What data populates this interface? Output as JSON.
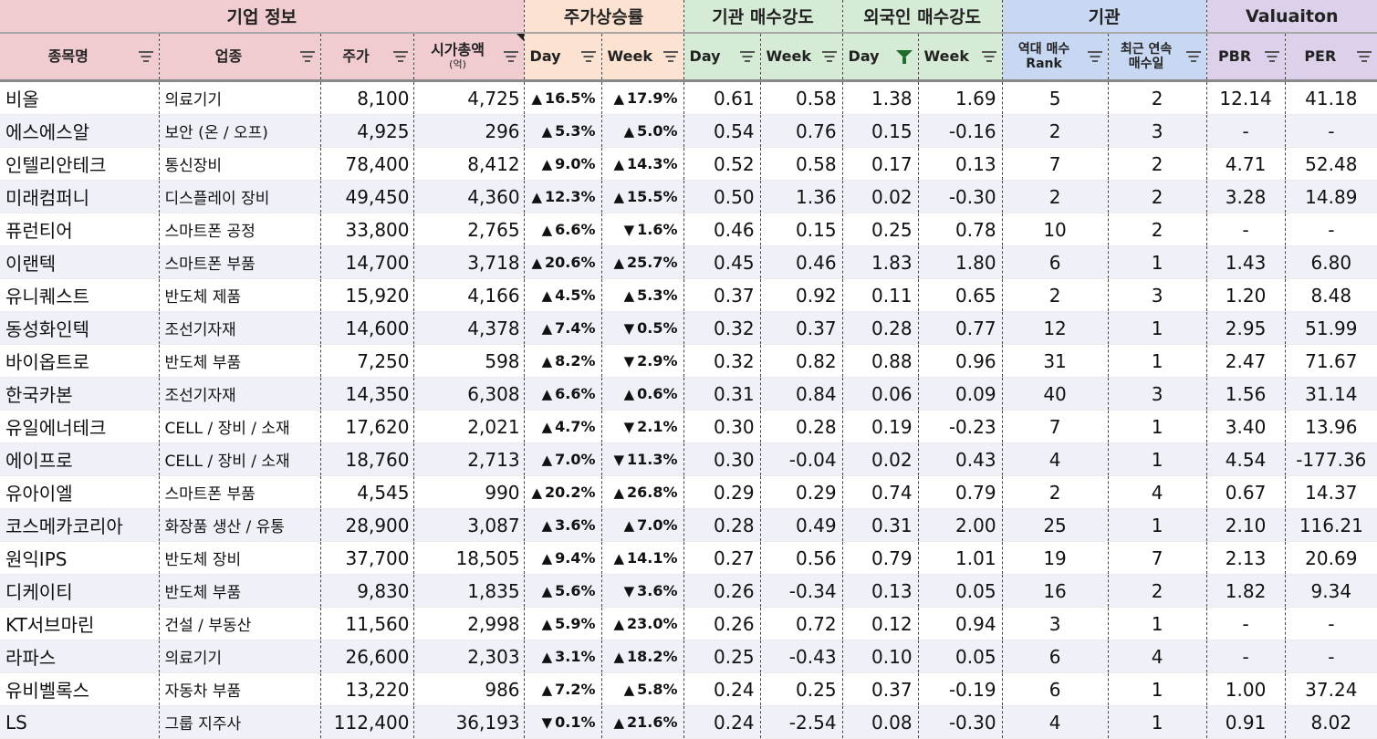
{
  "groups": {
    "company": "기업 정보",
    "price": "주가상승률",
    "inst": "기관 매수강도",
    "foreign": "외국인 매수강도",
    "inst2": "기관",
    "valuation": "Valuaiton"
  },
  "headers": {
    "name": "종목명",
    "industry": "업종",
    "price": "주가",
    "mcap": "시가총액",
    "mcap_unit": "(억)",
    "day": "Day",
    "week": "Week",
    "rank_line1": "역대 매수",
    "rank_line2": "Rank",
    "consec_line1": "최근 연속",
    "consec_line2": "매수일",
    "pbr": "PBR",
    "per": "PER"
  },
  "rows": [
    {
      "name": "비올",
      "industry": "의료기기",
      "price": "8,100",
      "mcap": "4,725",
      "pd": "16.5%",
      "pd_dir": "up",
      "pw": "17.9%",
      "pw_dir": "up",
      "id": "0.61",
      "iw": "0.58",
      "fd": "1.38",
      "fw": "1.69",
      "rank": "5",
      "consec": "2",
      "pbr": "12.14",
      "per": "41.18"
    },
    {
      "name": "에스에스알",
      "industry": "보안 (온 / 오프)",
      "price": "4,925",
      "mcap": "296",
      "pd": "5.3%",
      "pd_dir": "up",
      "pw": "5.0%",
      "pw_dir": "up",
      "id": "0.54",
      "iw": "0.76",
      "fd": "0.15",
      "fw": "-0.16",
      "rank": "2",
      "consec": "3",
      "pbr": "-",
      "per": "-"
    },
    {
      "name": "인텔리안테크",
      "industry": "통신장비",
      "price": "78,400",
      "mcap": "8,412",
      "pd": "9.0%",
      "pd_dir": "up",
      "pw": "14.3%",
      "pw_dir": "up",
      "id": "0.52",
      "iw": "0.58",
      "fd": "0.17",
      "fw": "0.13",
      "rank": "7",
      "consec": "2",
      "pbr": "4.71",
      "per": "52.48"
    },
    {
      "name": "미래컴퍼니",
      "industry": "디스플레이 장비",
      "price": "49,450",
      "mcap": "4,360",
      "pd": "12.3%",
      "pd_dir": "up",
      "pw": "15.5%",
      "pw_dir": "up",
      "id": "0.50",
      "iw": "1.36",
      "fd": "0.02",
      "fw": "-0.30",
      "rank": "2",
      "consec": "2",
      "pbr": "3.28",
      "per": "14.89"
    },
    {
      "name": "퓨런티어",
      "industry": "스마트폰 공정",
      "price": "33,800",
      "mcap": "2,765",
      "pd": "6.6%",
      "pd_dir": "up",
      "pw": "1.6%",
      "pw_dir": "dn",
      "id": "0.46",
      "iw": "0.15",
      "fd": "0.25",
      "fw": "0.78",
      "rank": "10",
      "consec": "2",
      "pbr": "-",
      "per": "-"
    },
    {
      "name": "이랜텍",
      "industry": "스마트폰 부품",
      "price": "14,700",
      "mcap": "3,718",
      "pd": "20.6%",
      "pd_dir": "up",
      "pw": "25.7%",
      "pw_dir": "up",
      "id": "0.45",
      "iw": "0.46",
      "fd": "1.83",
      "fw": "1.80",
      "rank": "6",
      "consec": "1",
      "pbr": "1.43",
      "per": "6.80"
    },
    {
      "name": "유니퀘스트",
      "industry": "반도체 제품",
      "price": "15,920",
      "mcap": "4,166",
      "pd": "4.5%",
      "pd_dir": "up",
      "pw": "5.3%",
      "pw_dir": "up",
      "id": "0.37",
      "iw": "0.92",
      "fd": "0.11",
      "fw": "0.65",
      "rank": "2",
      "consec": "3",
      "pbr": "1.20",
      "per": "8.48"
    },
    {
      "name": "동성화인텍",
      "industry": "조선기자재",
      "price": "14,600",
      "mcap": "4,378",
      "pd": "7.4%",
      "pd_dir": "up",
      "pw": "0.5%",
      "pw_dir": "dn",
      "id": "0.32",
      "iw": "0.37",
      "fd": "0.28",
      "fw": "0.77",
      "rank": "12",
      "consec": "1",
      "pbr": "2.95",
      "per": "51.99"
    },
    {
      "name": "바이옵트로",
      "industry": "반도체 부품",
      "price": "7,250",
      "mcap": "598",
      "pd": "8.2%",
      "pd_dir": "up",
      "pw": "2.9%",
      "pw_dir": "dn",
      "id": "0.32",
      "iw": "0.82",
      "fd": "0.88",
      "fw": "0.96",
      "rank": "31",
      "consec": "1",
      "pbr": "2.47",
      "per": "71.67"
    },
    {
      "name": "한국카본",
      "industry": "조선기자재",
      "price": "14,350",
      "mcap": "6,308",
      "pd": "6.6%",
      "pd_dir": "up",
      "pw": "0.6%",
      "pw_dir": "up",
      "id": "0.31",
      "iw": "0.84",
      "fd": "0.06",
      "fw": "0.09",
      "rank": "40",
      "consec": "3",
      "pbr": "1.56",
      "per": "31.14"
    },
    {
      "name": "유일에너테크",
      "industry": "CELL / 장비 / 소재",
      "price": "17,620",
      "mcap": "2,021",
      "pd": "4.7%",
      "pd_dir": "up",
      "pw": "2.1%",
      "pw_dir": "dn",
      "id": "0.30",
      "iw": "0.28",
      "fd": "0.19",
      "fw": "-0.23",
      "rank": "7",
      "consec": "1",
      "pbr": "3.40",
      "per": "13.96"
    },
    {
      "name": "에이프로",
      "industry": "CELL / 장비 / 소재",
      "price": "18,760",
      "mcap": "2,713",
      "pd": "7.0%",
      "pd_dir": "up",
      "pw": "11.3%",
      "pw_dir": "dn",
      "id": "0.30",
      "iw": "-0.04",
      "fd": "0.02",
      "fw": "0.43",
      "rank": "4",
      "consec": "1",
      "pbr": "4.54",
      "per": "-177.36"
    },
    {
      "name": "유아이엘",
      "industry": "스마트폰 부품",
      "price": "4,545",
      "mcap": "990",
      "pd": "20.2%",
      "pd_dir": "up",
      "pw": "26.8%",
      "pw_dir": "up",
      "id": "0.29",
      "iw": "0.29",
      "fd": "0.74",
      "fw": "0.79",
      "rank": "2",
      "consec": "4",
      "pbr": "0.67",
      "per": "14.37"
    },
    {
      "name": "코스메카코리아",
      "industry": "화장품 생산 / 유통",
      "price": "28,900",
      "mcap": "3,087",
      "pd": "3.6%",
      "pd_dir": "up",
      "pw": "7.0%",
      "pw_dir": "up",
      "id": "0.28",
      "iw": "0.49",
      "fd": "0.31",
      "fw": "2.00",
      "rank": "25",
      "consec": "1",
      "pbr": "2.10",
      "per": "116.21"
    },
    {
      "name": "원익IPS",
      "industry": "반도체 장비",
      "price": "37,700",
      "mcap": "18,505",
      "pd": "9.4%",
      "pd_dir": "up",
      "pw": "14.1%",
      "pw_dir": "up",
      "id": "0.27",
      "iw": "0.56",
      "fd": "0.79",
      "fw": "1.01",
      "rank": "19",
      "consec": "7",
      "pbr": "2.13",
      "per": "20.69"
    },
    {
      "name": "디케이티",
      "industry": "반도체 부품",
      "price": "9,830",
      "mcap": "1,835",
      "pd": "5.6%",
      "pd_dir": "up",
      "pw": "3.6%",
      "pw_dir": "dn",
      "id": "0.26",
      "iw": "-0.34",
      "fd": "0.13",
      "fw": "0.05",
      "rank": "16",
      "consec": "2",
      "pbr": "1.82",
      "per": "9.34"
    },
    {
      "name": "KT서브마린",
      "industry": "건설 / 부동산",
      "price": "11,560",
      "mcap": "2,998",
      "pd": "5.9%",
      "pd_dir": "up",
      "pw": "23.0%",
      "pw_dir": "up",
      "id": "0.26",
      "iw": "0.72",
      "fd": "0.12",
      "fw": "0.94",
      "rank": "3",
      "consec": "1",
      "pbr": "-",
      "per": "-"
    },
    {
      "name": "라파스",
      "industry": "의료기기",
      "price": "26,600",
      "mcap": "2,303",
      "pd": "3.1%",
      "pd_dir": "up",
      "pw": "18.2%",
      "pw_dir": "up",
      "id": "0.25",
      "iw": "-0.43",
      "fd": "0.10",
      "fw": "0.05",
      "rank": "6",
      "consec": "4",
      "pbr": "-",
      "per": "-"
    },
    {
      "name": "유비벨록스",
      "industry": "자동차 부품",
      "price": "13,220",
      "mcap": "986",
      "pd": "7.2%",
      "pd_dir": "up",
      "pw": "5.8%",
      "pw_dir": "up",
      "id": "0.24",
      "iw": "0.25",
      "fd": "0.37",
      "fw": "-0.19",
      "rank": "6",
      "consec": "1",
      "pbr": "1.00",
      "per": "37.24"
    },
    {
      "name": "LS",
      "industry": "그룹 지주사",
      "price": "112,400",
      "mcap": "36,193",
      "pd": "0.1%",
      "pd_dir": "dn",
      "pw": "21.6%",
      "pw_dir": "up",
      "id": "0.24",
      "iw": "-2.54",
      "fd": "0.08",
      "fw": "-0.30",
      "rank": "4",
      "consec": "1",
      "pbr": "0.91",
      "per": "8.02"
    }
  ],
  "colors": {
    "up": "#e8141c",
    "down": "#1418e8",
    "active_filter": "#1e6b2e"
  }
}
